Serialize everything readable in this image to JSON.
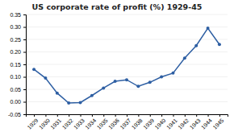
{
  "chart_data": {
    "type": "line",
    "title": "US corporate rate of profit (%) 1929-45",
    "x": [
      1929,
      1930,
      1931,
      1932,
      1933,
      1934,
      1935,
      1936,
      1937,
      1938,
      1939,
      1940,
      1941,
      1942,
      1943,
      1944,
      1945
    ],
    "values": [
      0.13,
      0.095,
      0.035,
      -0.005,
      -0.003,
      0.025,
      0.055,
      0.082,
      0.088,
      0.062,
      0.078,
      0.1,
      0.115,
      0.175,
      0.225,
      0.295,
      0.23
    ],
    "color": "#2E5FA3",
    "marker": "circle",
    "xlim": [
      1928.3,
      1945.7
    ],
    "xticks": [
      1929,
      1930,
      1931,
      1932,
      1933,
      1934,
      1935,
      1936,
      1937,
      1938,
      1939,
      1940,
      1941,
      1942,
      1943,
      1944,
      1945
    ],
    "ylim": [
      -0.05,
      0.35
    ],
    "yticks": [
      -0.05,
      {
        "value": 0.0,
        "label": "0.00"
      },
      0.05,
      {
        "value": 0.1,
        "label": "0.10"
      },
      0.15,
      {
        "value": 0.2,
        "label": "0.20"
      },
      0.25,
      {
        "value": 0.3,
        "label": "0.30"
      },
      0.35
    ],
    "grid": true
  }
}
